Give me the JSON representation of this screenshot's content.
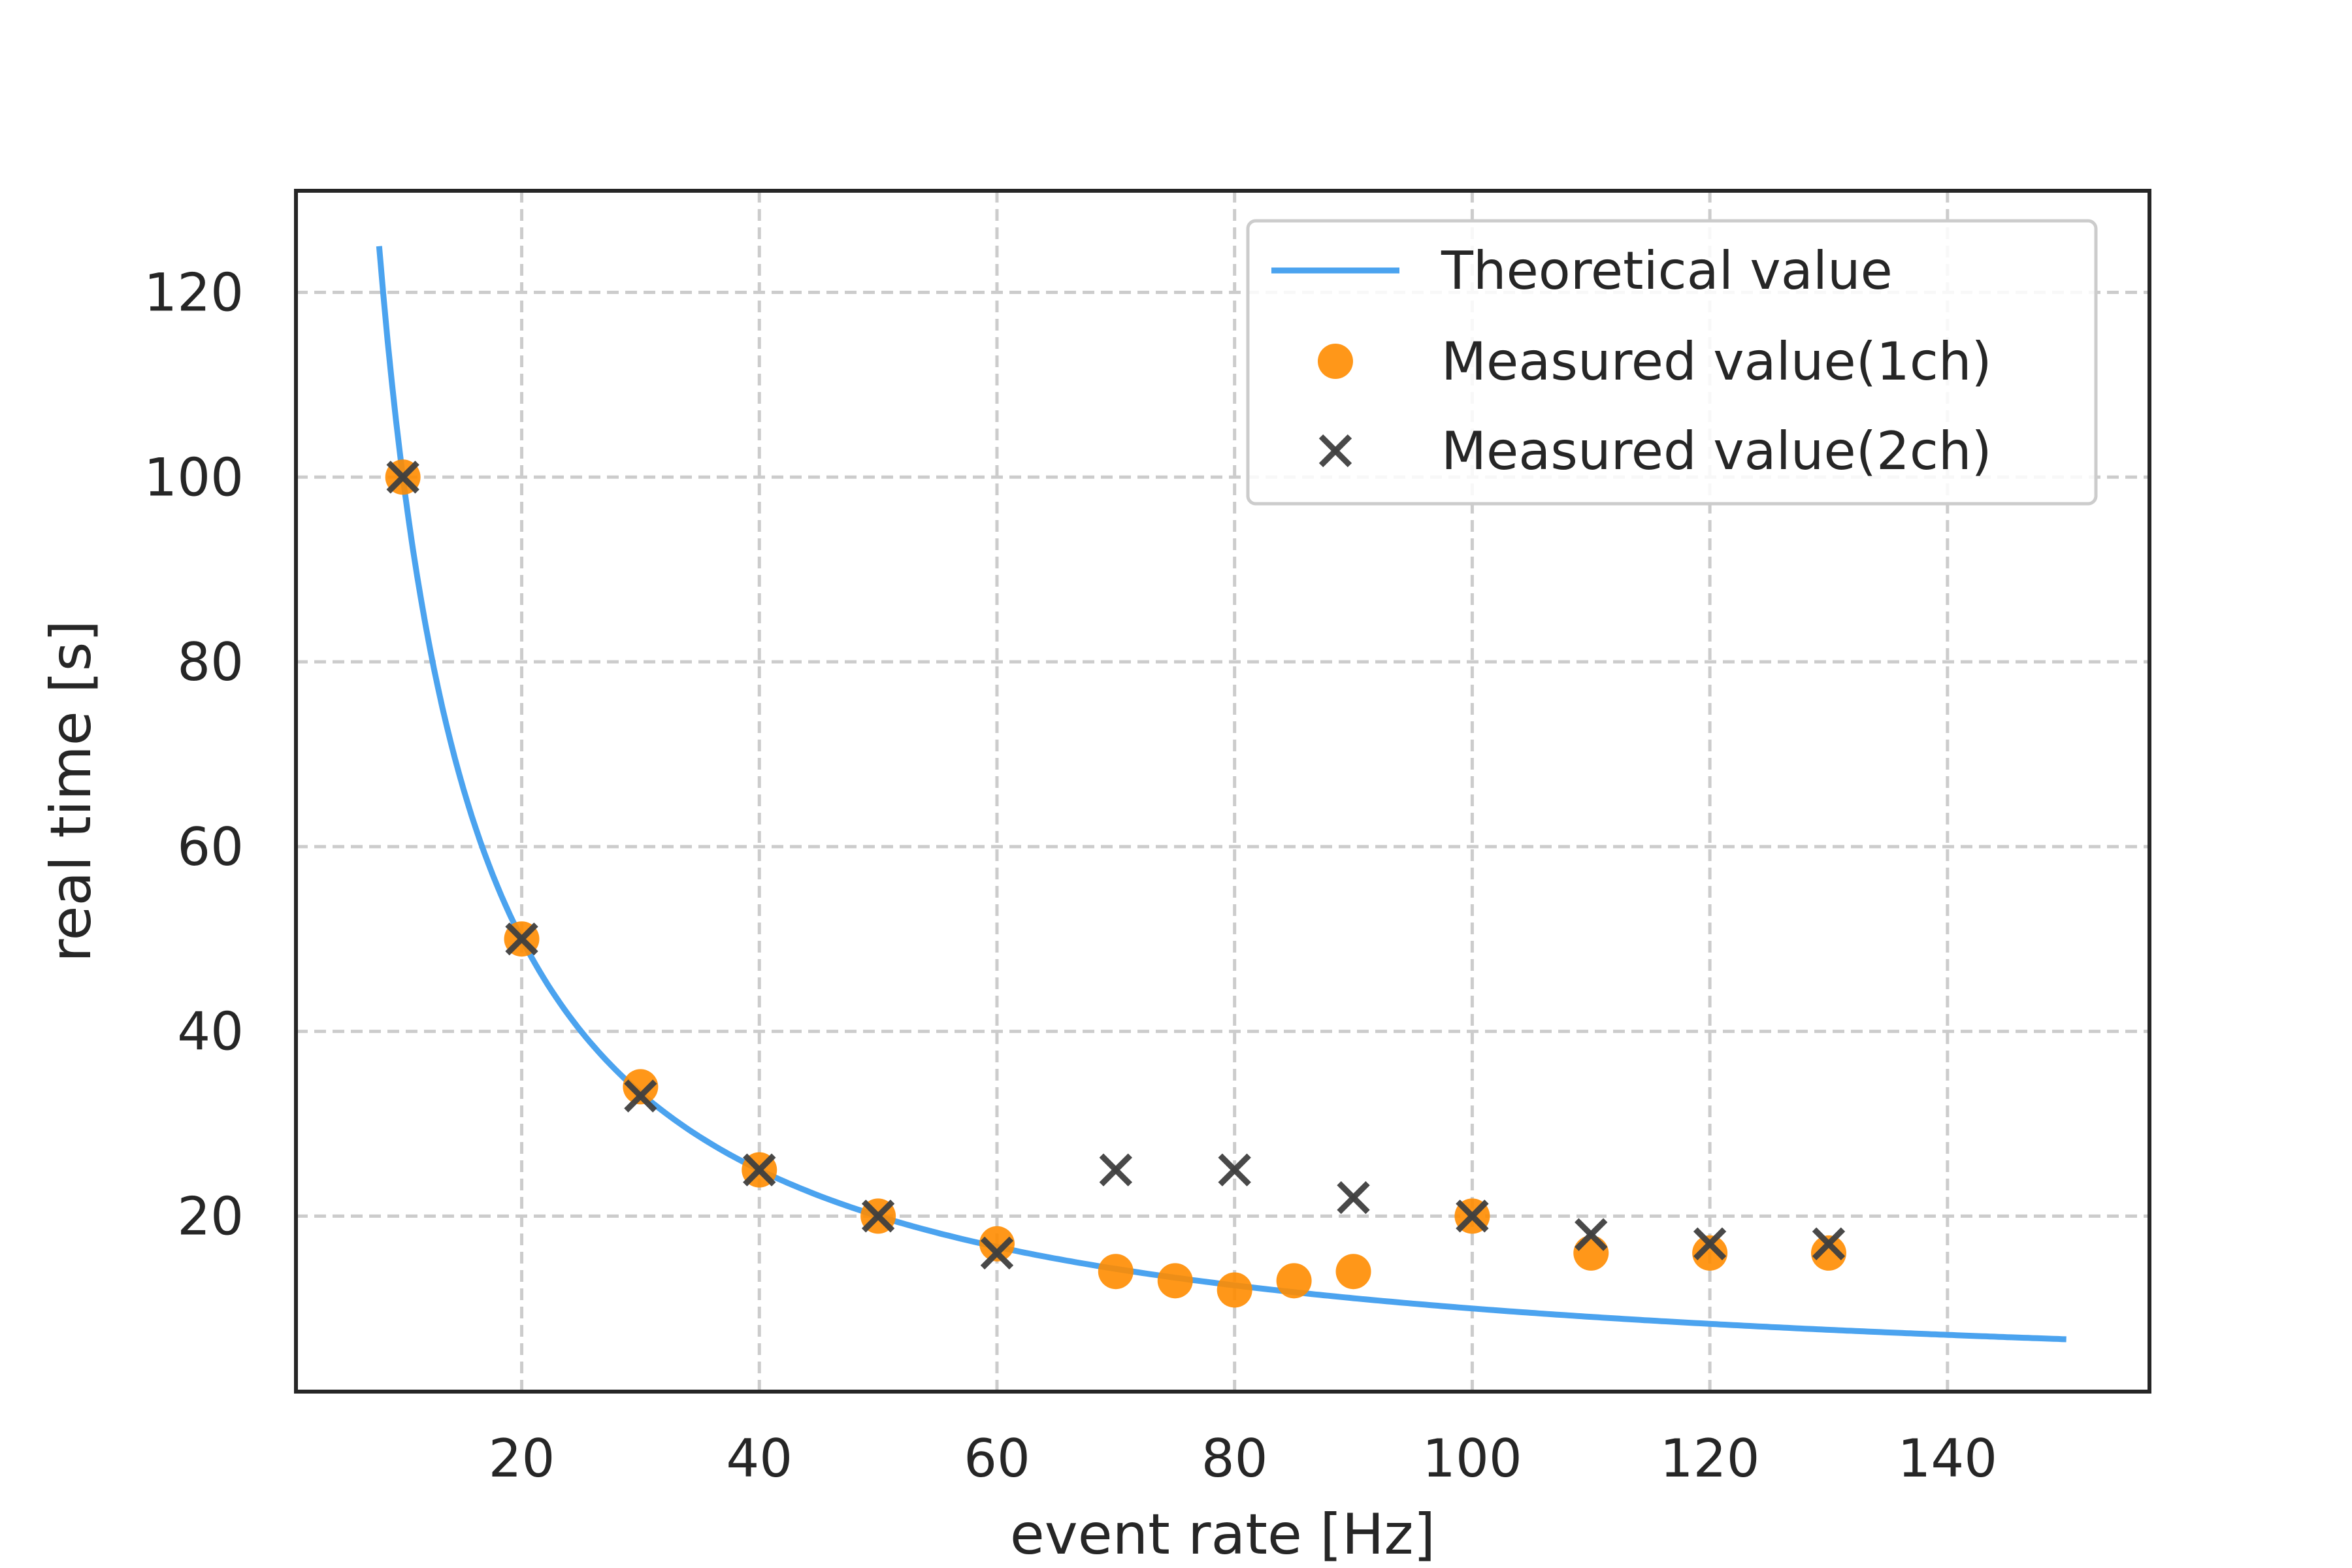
{
  "chart_data": {
    "type": "scatter",
    "title": "",
    "xlabel": "event rate [Hz]",
    "ylabel": "real time [s]",
    "xlim": [
      1,
      157
    ],
    "ylim": [
      1,
      131
    ],
    "x_ticks": [
      20,
      40,
      60,
      80,
      100,
      120,
      140
    ],
    "y_ticks": [
      20,
      40,
      60,
      80,
      100,
      120
    ],
    "grid": true,
    "legend_position": "top-right",
    "series": [
      {
        "name": "Theoretical value",
        "type": "line",
        "function": "y = 1000 / x",
        "x_range": [
          8,
          150
        ],
        "color": "#4ba3ef"
      },
      {
        "name": "Measured value(1ch)",
        "type": "scatter",
        "marker": "circle",
        "color": "#ff8c00",
        "points": [
          [
            10,
            100
          ],
          [
            20,
            50
          ],
          [
            30,
            34
          ],
          [
            40,
            25
          ],
          [
            50,
            20
          ],
          [
            60,
            17
          ],
          [
            70,
            14
          ],
          [
            75,
            13
          ],
          [
            80,
            12
          ],
          [
            85,
            13
          ],
          [
            90,
            14
          ],
          [
            100,
            20
          ],
          [
            110,
            16
          ],
          [
            120,
            16
          ],
          [
            130,
            16
          ]
        ]
      },
      {
        "name": "Measured value(2ch)",
        "type": "scatter",
        "marker": "x",
        "color": "#404040",
        "points": [
          [
            10,
            100
          ],
          [
            20,
            50
          ],
          [
            30,
            33
          ],
          [
            40,
            25
          ],
          [
            50,
            20
          ],
          [
            60,
            16
          ],
          [
            70,
            25
          ],
          [
            80,
            25
          ],
          [
            90,
            22
          ],
          [
            100,
            20
          ],
          [
            110,
            18
          ],
          [
            120,
            17
          ],
          [
            130,
            17
          ]
        ]
      }
    ]
  }
}
